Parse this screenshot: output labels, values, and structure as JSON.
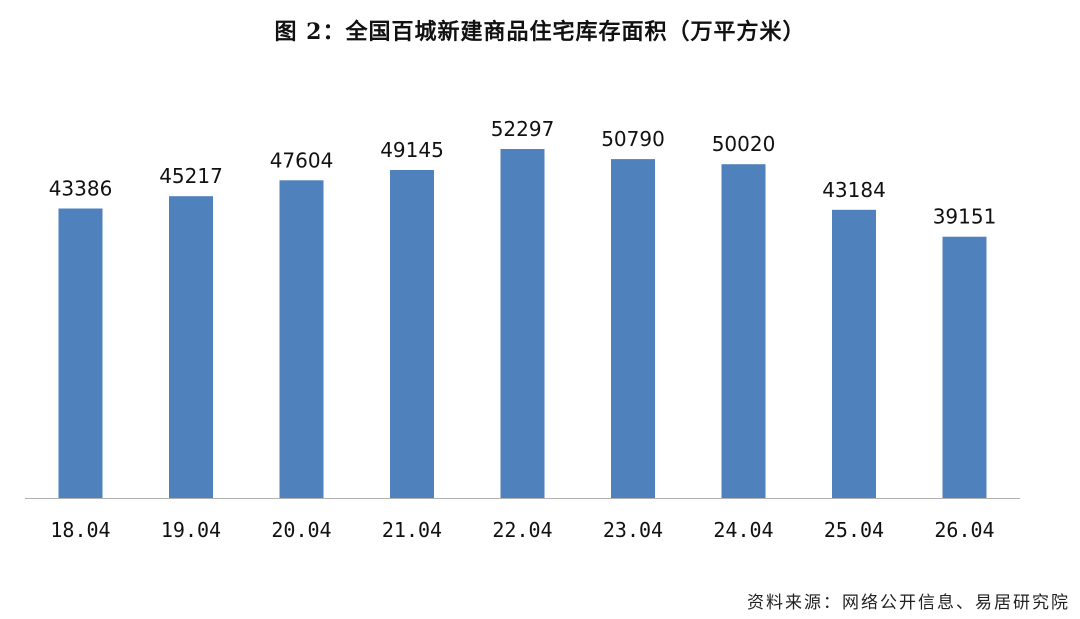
{
  "chart_data": {
    "type": "bar",
    "title": "图 2：全国百城新建商品住宅库存面积（万平方米）",
    "categories": [
      "18.04",
      "19.04",
      "20.04",
      "21.04",
      "22.04",
      "23.04",
      "24.04",
      "25.04",
      "26.04"
    ],
    "values": [
      43386,
      45217,
      47604,
      49145,
      52297,
      50790,
      50020,
      43184,
      39151
    ],
    "xlabel": "",
    "ylabel": "",
    "ylim": [
      0,
      55000
    ],
    "grid": false,
    "legend": "none",
    "data_labels": true,
    "bar_color": "#4f81bd",
    "axis_color": "#b0b0b0"
  },
  "source_note": "资料来源：网络公开信息、易居研究院"
}
